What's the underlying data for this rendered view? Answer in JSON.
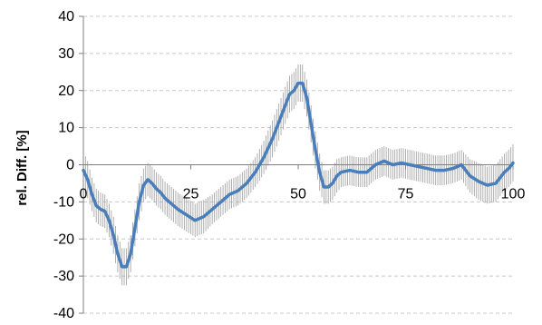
{
  "chart_data": {
    "type": "line",
    "title": "",
    "xlabel": "",
    "ylabel": "rel. Diff. [%]",
    "xlim": [
      0,
      100
    ],
    "ylim": [
      -40,
      40
    ],
    "x_ticks": [
      0,
      25,
      50,
      75,
      100
    ],
    "y_ticks": [
      -40,
      -30,
      -20,
      -10,
      0,
      10,
      20,
      30,
      40
    ],
    "x_tick_labels": [
      "0",
      "25",
      "50",
      "75",
      "100"
    ],
    "y_tick_labels": [
      "-40",
      "-30",
      "-20",
      "-10",
      "0",
      "10",
      "20",
      "30",
      "40"
    ],
    "grid": "horizontal dashed",
    "colors": {
      "line": "#4a7ebb",
      "error_bars": "#a6a6a6",
      "grid": "#c8c8c8",
      "axis": "#7f7f7f"
    },
    "series": [
      {
        "x": [
          0,
          1,
          2,
          3,
          4,
          5,
          6,
          7,
          8,
          9,
          10,
          11,
          12,
          13,
          14,
          15,
          16,
          17,
          18,
          19,
          20,
          22,
          24,
          26,
          28,
          30,
          32,
          34,
          36,
          38,
          40,
          42,
          44,
          46,
          48,
          49,
          50,
          51,
          52,
          53,
          54,
          55,
          56,
          57,
          58,
          59,
          60,
          62,
          64,
          66,
          68,
          70,
          72,
          74,
          76,
          78,
          80,
          82,
          84,
          86,
          88,
          90,
          92,
          94,
          96,
          98,
          99,
          100
        ],
        "mean": [
          -1.5,
          -4,
          -8,
          -11,
          -12,
          -12.5,
          -15,
          -19,
          -24,
          -27.5,
          -27.5,
          -24,
          -17,
          -10,
          -5.5,
          -4,
          -5,
          -6.5,
          -7.5,
          -9,
          -10,
          -12,
          -13.5,
          -15,
          -14,
          -12,
          -10,
          -8,
          -7,
          -5,
          -2,
          2,
          7,
          13,
          19,
          20,
          22,
          22,
          18,
          11,
          4,
          -2,
          -6,
          -6,
          -5,
          -3,
          -2,
          -1.5,
          -2,
          -2,
          0,
          1,
          0,
          0.5,
          0,
          -0.5,
          -1,
          -1.5,
          -1.5,
          -1,
          0,
          -3,
          -4.5,
          -5.5,
          -5,
          -2,
          -1,
          0.5
        ],
        "error": [
          5,
          5,
          4.5,
          4.5,
          4.5,
          4.5,
          4.5,
          5,
          5,
          5,
          5,
          5,
          5,
          5,
          4.5,
          4.5,
          4.5,
          4.5,
          4.5,
          4.5,
          4.5,
          4.5,
          4.5,
          4.5,
          4.5,
          4,
          4,
          4,
          4,
          4,
          4,
          4.5,
          5,
          5,
          5,
          5,
          5,
          5,
          5,
          5,
          5,
          5,
          4.5,
          4.5,
          4.5,
          4.5,
          4,
          4,
          4,
          4,
          4,
          4,
          4,
          4,
          4,
          4,
          4,
          4,
          4,
          4,
          4,
          4.5,
          5,
          5,
          5,
          5,
          5,
          5
        ]
      }
    ]
  }
}
